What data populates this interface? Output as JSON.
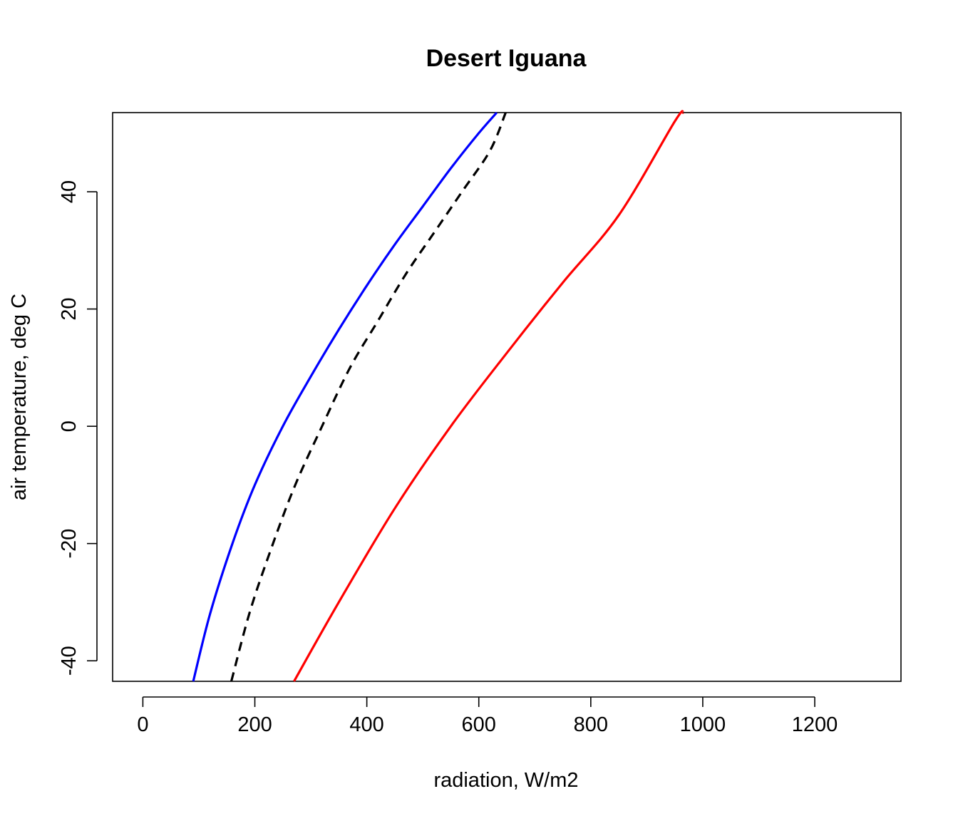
{
  "chart_data": {
    "type": "line",
    "title": "Desert Iguana",
    "xlabel": "radiation, W/m2",
    "ylabel": "air temperature, deg C",
    "xlim": [
      -54,
      1354
    ],
    "ylim": [
      -43.5,
      53.5
    ],
    "xticks": [
      0,
      200,
      400,
      600,
      800,
      1000,
      1200
    ],
    "yticks": [
      -40,
      -20,
      0,
      20,
      40
    ],
    "xtick_labels": [
      "0",
      "200",
      "400",
      "600",
      "800",
      "1000",
      "1200"
    ],
    "ytick_labels": [
      "-40",
      "-20",
      "0",
      "20",
      "40"
    ],
    "grid": false,
    "legend": "none",
    "series": [
      {
        "color": "#0000ff",
        "dash": "solid",
        "x": [
          90,
          120,
          160,
          200,
          250,
          300,
          350,
          400,
          450,
          500,
          550,
          600,
          632
        ],
        "y": [
          -43.5,
          -32,
          -20,
          -10,
          0,
          8.5,
          16.5,
          24,
          31,
          37.5,
          44,
          50,
          53.5
        ]
      },
      {
        "color": "#000000",
        "dash": "dashed",
        "x": [
          158,
          190,
          225,
          270,
          320,
          370,
          420,
          470,
          520,
          570,
          620,
          648
        ],
        "y": [
          -43.5,
          -32,
          -22,
          -10.5,
          0,
          10,
          18,
          26,
          33,
          40,
          47,
          53.5
        ]
      },
      {
        "color": "#ff0000",
        "dash": "solid",
        "x": [
          270,
          350,
          450,
          550,
          650,
          750,
          850,
          950,
          965
        ],
        "y": [
          -43.5,
          -30,
          -14,
          0,
          12.5,
          24.5,
          36,
          52,
          53.5
        ]
      }
    ]
  }
}
